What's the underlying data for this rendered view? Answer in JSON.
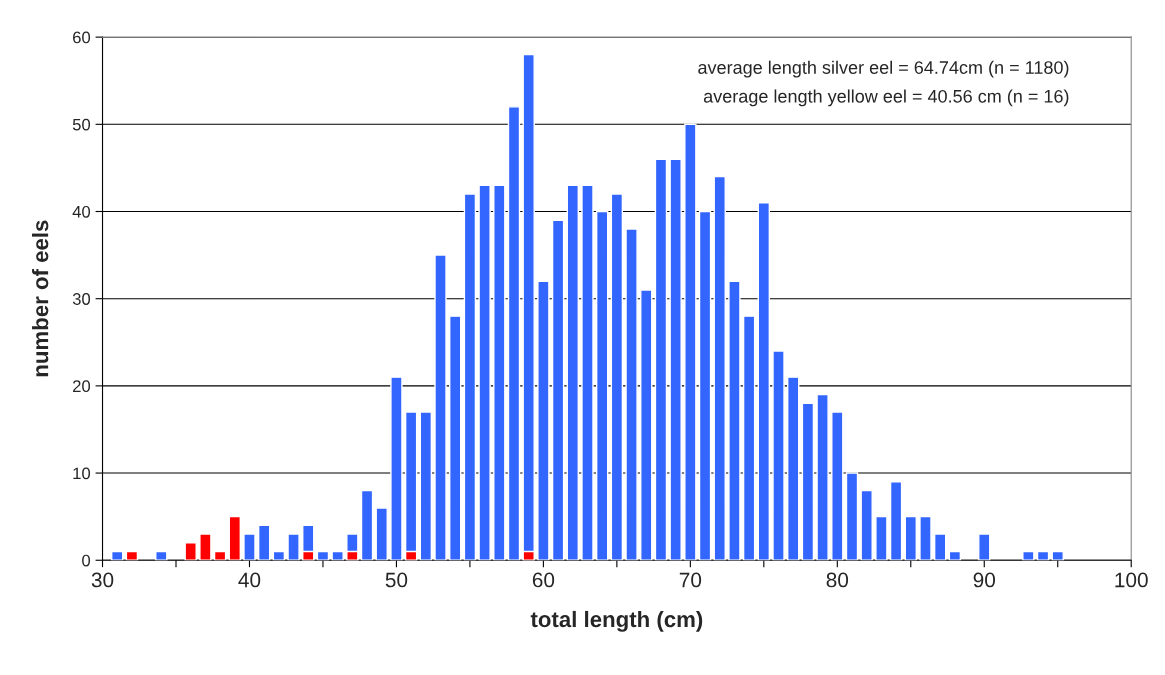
{
  "chart_data": {
    "type": "bar",
    "xlabel": "total length (cm)",
    "ylabel": "number of eels",
    "x": [
      31,
      32,
      33,
      34,
      35,
      36,
      37,
      38,
      39,
      40,
      41,
      42,
      43,
      44,
      45,
      46,
      47,
      48,
      49,
      50,
      51,
      52,
      53,
      54,
      55,
      56,
      57,
      58,
      59,
      60,
      61,
      62,
      63,
      64,
      65,
      66,
      67,
      68,
      69,
      70,
      71,
      72,
      73,
      74,
      75,
      76,
      77,
      78,
      79,
      80,
      81,
      82,
      83,
      84,
      85,
      86,
      87,
      88,
      89,
      90,
      91,
      92,
      93,
      94,
      95
    ],
    "series": [
      {
        "color": "#3366ff",
        "values": [
          1,
          null,
          null,
          1,
          null,
          null,
          null,
          null,
          null,
          3,
          4,
          1,
          3,
          4,
          1,
          1,
          3,
          8,
          6,
          21,
          17,
          17,
          35,
          28,
          42,
          43,
          43,
          52,
          58,
          32,
          39,
          43,
          43,
          40,
          42,
          38,
          31,
          46,
          46,
          50,
          40,
          44,
          32,
          28,
          41,
          24,
          21,
          18,
          19,
          17,
          10,
          8,
          5,
          9,
          5,
          5,
          3,
          1,
          null,
          3,
          null,
          null,
          1,
          1,
          1
        ]
      },
      {
        "color": "#ff0000",
        "values": [
          null,
          1,
          null,
          null,
          null,
          2,
          3,
          1,
          5,
          null,
          null,
          null,
          null,
          1,
          null,
          null,
          1,
          null,
          null,
          null,
          1,
          null,
          null,
          null,
          null,
          null,
          null,
          null,
          1,
          null,
          null,
          null,
          null,
          null,
          null,
          null,
          null,
          null,
          null,
          null,
          null,
          null,
          null,
          null,
          null,
          null,
          null,
          null,
          null,
          null,
          null,
          null,
          null,
          null,
          null,
          null,
          null,
          null,
          null,
          null,
          null,
          null,
          null,
          null,
          null
        ]
      }
    ],
    "xlim": [
      30,
      100
    ],
    "xticks": [
      30,
      {
        "value": 35,
        "label": null
      },
      40,
      {
        "value": 45,
        "label": null
      },
      50,
      {
        "value": 55,
        "label": null
      },
      60,
      {
        "value": 65,
        "label": null
      },
      70,
      {
        "value": 75,
        "label": null
      },
      80,
      {
        "value": 85,
        "label": null
      },
      90,
      {
        "value": 95,
        "label": null
      },
      100
    ],
    "ylim": [
      0,
      60
    ],
    "yticks": [
      0,
      10,
      20,
      30,
      40,
      50,
      60
    ],
    "grid": "y",
    "annotations": [
      "average length silver eel = 64.74cm (n = 1180)",
      "average length yellow eel = 40.56 cm (n = 16)"
    ]
  }
}
